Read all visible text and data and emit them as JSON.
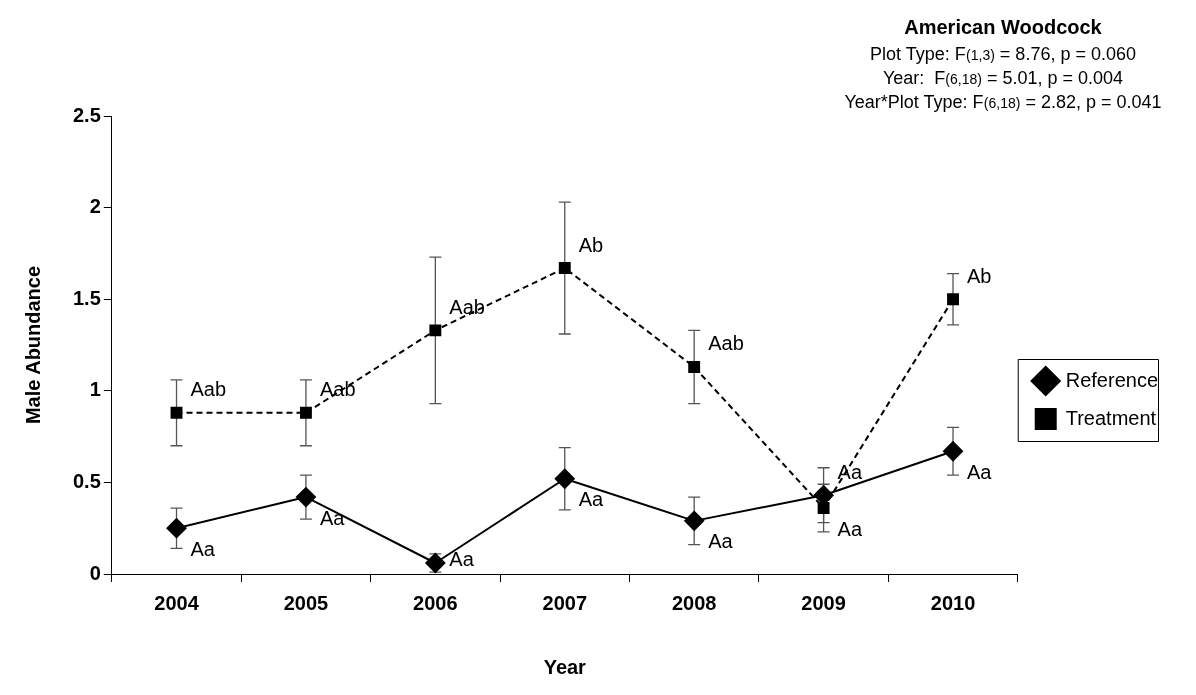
{
  "chart_data": {
    "type": "line",
    "title": "American Woodcock",
    "subtitle": [
      "Plot Type: F$_{(1,3)}$ = 8.76, p = 0.060",
      "Year:  F$_{(6,18)}$ = 5.01, p = 0.004",
      "Year*Plot Type: F$_{(6,18)}$ = 2.82, p = 0.041"
    ],
    "xlabel": "Year",
    "ylabel": "Male Abundance",
    "categories": [
      "2004",
      "2005",
      "2006",
      "2007",
      "2008",
      "2009",
      "2010"
    ],
    "series": [
      {
        "name": "Reference",
        "color": "#000000",
        "marker": "diamond",
        "line_style": "solid",
        "values": [
          0.25,
          0.42,
          0.06,
          0.52,
          0.29,
          0.43,
          0.67
        ],
        "errors": [
          0.11,
          0.12,
          0.05,
          0.17,
          0.13,
          0.15,
          0.13
        ]
      },
      {
        "name": "Treatment",
        "color": "#000000",
        "marker": "square",
        "line_style": "dashed",
        "values": [
          0.88,
          0.88,
          1.33,
          1.67,
          1.13,
          0.36,
          1.5
        ],
        "errors": [
          0.18,
          0.18,
          0.4,
          0.36,
          0.2,
          0.13,
          0.14
        ]
      }
    ],
    "ylim": [
      0,
      2.5
    ],
    "yticks": [
      0,
      0.5,
      1,
      1.5,
      2,
      2.5
    ],
    "grid": false,
    "legend": "right",
    "annotations": [
      {
        "text": "Aa",
        "x": "2004",
        "y": 0.25
      },
      {
        "text": "Aa",
        "x": "2005",
        "y": 0.42
      },
      {
        "text": "Aa",
        "x": "2006",
        "y": 0.06
      },
      {
        "text": "Aa",
        "x": "2007",
        "y": 0.52
      },
      {
        "text": "Aa",
        "x": "2008",
        "y": 0.29
      },
      {
        "text": "Aa",
        "x": "2009",
        "y": 0.43
      },
      {
        "text": "Aa",
        "x": "2010",
        "y": 0.67
      },
      {
        "text": "Aab",
        "x": "2004",
        "y": 0.88
      },
      {
        "text": "Aab",
        "x": "2005",
        "y": 0.88
      },
      {
        "text": "Aab",
        "x": "2006",
        "y": 1.33
      },
      {
        "text": "Ab",
        "x": "2007",
        "y": 1.67
      },
      {
        "text": "Aab",
        "x": "2008",
        "y": 1.13
      },
      {
        "text": "Aa",
        "x": "2009",
        "y": 0.36
      },
      {
        "text": "Ab",
        "x": "2010",
        "y": 1.5
      }
    ]
  }
}
